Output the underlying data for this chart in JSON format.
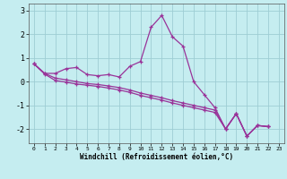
{
  "xlabel": "Windchill (Refroidissement éolien,°C)",
  "background_color": "#c5edf0",
  "grid_color": "#9ecdd4",
  "line_color": "#993399",
  "xlim": [
    -0.5,
    23.5
  ],
  "ylim": [
    -2.6,
    3.3
  ],
  "xticks": [
    0,
    1,
    2,
    3,
    4,
    5,
    6,
    7,
    8,
    9,
    10,
    11,
    12,
    13,
    14,
    15,
    16,
    17,
    18,
    19,
    20,
    21,
    22,
    23
  ],
  "yticks": [
    -2,
    -1,
    0,
    1,
    2,
    3
  ],
  "line1_x": [
    0,
    1,
    2,
    3,
    4,
    5,
    6,
    7,
    8,
    9,
    10,
    11,
    12,
    13,
    14,
    15,
    16,
    17,
    18,
    19,
    20,
    21,
    22
  ],
  "line1_y": [
    0.75,
    0.35,
    0.35,
    0.55,
    0.6,
    0.3,
    0.25,
    0.3,
    0.2,
    0.65,
    0.85,
    2.3,
    2.8,
    1.9,
    1.5,
    0.0,
    -0.55,
    -1.1,
    -2.0,
    -1.35,
    -2.3,
    -1.85,
    -1.9
  ],
  "line2_x": [
    0,
    1,
    2,
    3,
    4,
    5,
    6,
    7,
    8,
    9,
    10,
    11,
    12,
    13,
    14,
    15,
    16,
    17,
    18,
    19,
    20,
    21,
    22
  ],
  "line2_y": [
    0.75,
    0.35,
    0.15,
    0.08,
    0.0,
    -0.08,
    -0.12,
    -0.18,
    -0.25,
    -0.35,
    -0.48,
    -0.58,
    -0.68,
    -0.8,
    -0.9,
    -1.0,
    -1.1,
    -1.2,
    -2.0,
    -1.35,
    -2.3,
    -1.85,
    -1.9
  ],
  "line3_x": [
    0,
    1,
    2,
    3,
    4,
    5,
    6,
    7,
    8,
    9,
    10,
    11,
    12,
    13,
    14,
    15,
    16,
    17,
    18,
    19,
    20,
    21,
    22
  ],
  "line3_y": [
    0.75,
    0.32,
    0.05,
    -0.02,
    -0.1,
    -0.15,
    -0.2,
    -0.27,
    -0.35,
    -0.45,
    -0.58,
    -0.68,
    -0.78,
    -0.9,
    -1.0,
    -1.1,
    -1.2,
    -1.3,
    -2.0,
    -1.35,
    -2.3,
    -1.85,
    -1.9
  ],
  "marker_x1": [
    0,
    1,
    2,
    3,
    4,
    5,
    6,
    7,
    8,
    9,
    10,
    11,
    12,
    13,
    14,
    15,
    16,
    17,
    18,
    19,
    20,
    21,
    22
  ],
  "marker_y1": [
    0.75,
    0.35,
    0.35,
    0.55,
    0.6,
    0.3,
    0.25,
    0.3,
    0.2,
    0.65,
    0.85,
    2.3,
    2.8,
    1.9,
    1.5,
    0.0,
    -0.55,
    -1.1,
    -2.0,
    -1.35,
    -2.3,
    -1.85,
    -1.9
  ]
}
